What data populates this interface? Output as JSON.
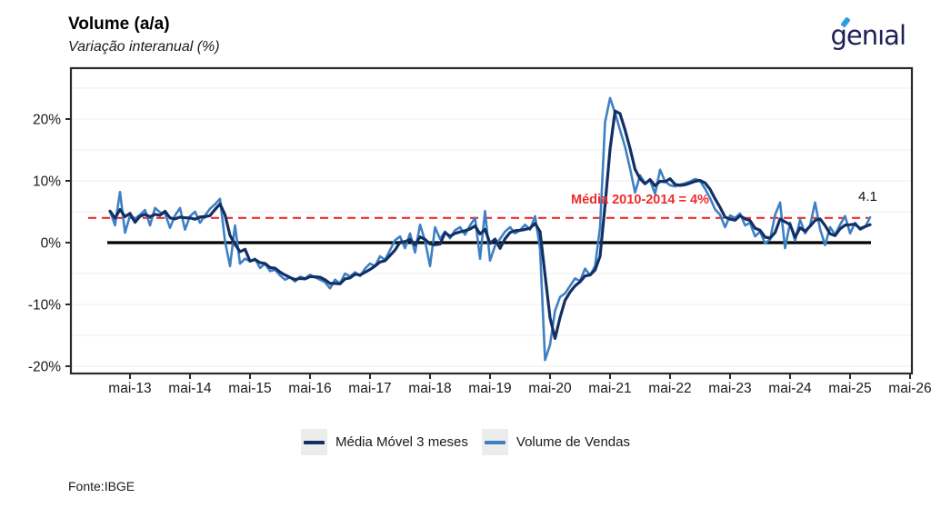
{
  "header": {
    "title": "Volume (a/a)",
    "subtitle": "Variação interanual (%)"
  },
  "logo": {
    "text": "genıal",
    "color": "#1d2157",
    "accent_color": "#2f9ce8"
  },
  "footer": {
    "source": "Fonte:IBGE"
  },
  "legend": [
    {
      "label": "Média Móvel 3 meses",
      "color": "#123064"
    },
    {
      "label": "Volume de Vendas",
      "color": "#3e80c4"
    }
  ],
  "annotations": {
    "mean_line_label": "Média 2010-2014 = 4%",
    "mean_line_color": "#f02b2b",
    "last_value_label": "4.1"
  },
  "chart_data": {
    "type": "line",
    "title": "Volume (a/a)",
    "subtitle": "Variação interanual (%)",
    "xlabel": "",
    "ylabel": "Variação interanual (%)",
    "x_frequency": "monthly",
    "x_start": "jan-2013",
    "x_end": "set-2025",
    "x_tick_labels": [
      "mai-13",
      "mai-14",
      "mai-15",
      "mai-16",
      "mai-17",
      "mai-18",
      "mai-19",
      "mai-20",
      "mai-21",
      "mai-22",
      "mai-23",
      "mai-24",
      "mai-25",
      "mai-26"
    ],
    "y_ticks": [
      20,
      10,
      0,
      -10,
      -20
    ],
    "y_tick_labels": [
      "20%",
      "10%",
      "0%",
      "-10%",
      "-20%"
    ],
    "ylim": [
      -22.5,
      28
    ],
    "gridline_values": [
      25,
      20,
      15,
      10,
      5,
      -5,
      -10,
      -15,
      -20
    ],
    "grid": "horizontal-light",
    "grid_color": "#ededed",
    "axis_color": "#2b2b2b",
    "zero_line_color": "#000000",
    "legend_position": "bottom",
    "reference_lines": [
      {
        "label": "Média 2010-2014 = 4%",
        "value": 4,
        "color": "#f02b2b",
        "style": "dashed"
      },
      {
        "label": "zero",
        "value": 0,
        "color": "#000000",
        "style": "solid"
      }
    ],
    "series": [
      {
        "name": "Volume de Vendas",
        "color": "#3e80c4",
        "values": [
          5.1,
          2.8,
          8.2,
          1.6,
          4.4,
          3.9,
          4.5,
          5.3,
          2.8,
          5.6,
          4.9,
          4.7,
          2.4,
          4.4,
          5.6,
          2.1,
          4.3,
          5.0,
          3.2,
          4.4,
          5.5,
          6.2,
          7.1,
          0.2,
          -3.8,
          2.8,
          -3.4,
          -2.6,
          -3.0,
          -2.6,
          -4.1,
          -3.4,
          -4.6,
          -4.4,
          -5.3,
          -6.0,
          -5.6,
          -6.3,
          -5.5,
          -5.8,
          -5.2,
          -5.6,
          -6.0,
          -6.4,
          -7.4,
          -6.0,
          -6.6,
          -5.0,
          -5.5,
          -4.8,
          -5.4,
          -4.2,
          -3.4,
          -3.8,
          -2.2,
          -2.8,
          -1.2,
          0.4,
          1.0,
          -0.9,
          1.5,
          -1.6,
          2.9,
          0.3,
          -3.8,
          2.5,
          0.6,
          1.8,
          0.7,
          2.0,
          2.5,
          1.3,
          2.8,
          4.0,
          -2.6,
          5.1,
          -2.9,
          -0.5,
          0.6,
          1.8,
          2.5,
          1.5,
          2.0,
          2.9,
          2.1,
          4.3,
          -1.0,
          -19.0,
          -16.5,
          -11.0,
          -8.8,
          -8.2,
          -7.0,
          -5.8,
          -6.2,
          -4.2,
          -5.3,
          -3.8,
          2.5,
          19.5,
          23.4,
          21.0,
          18.2,
          15.5,
          12.0,
          8.1,
          10.9,
          9.6,
          10.1,
          7.9,
          11.8,
          9.9,
          9.3,
          9.1,
          9.4,
          9.6,
          9.9,
          10.3,
          10.0,
          8.7,
          7.2,
          5.4,
          4.5,
          2.5,
          4.4,
          4.0,
          4.7,
          2.8,
          3.2,
          1.0,
          1.8,
          -0.1,
          0.5,
          4.5,
          6.5,
          -0.9,
          3.2,
          0.3,
          3.7,
          1.5,
          2.8,
          6.5,
          2.2,
          -0.4,
          2.5,
          1.3,
          2.9,
          4.3,
          1.5,
          3.2,
          2.1,
          2.5,
          4.1
        ]
      },
      {
        "name": "Média Móvel 3 meses",
        "color": "#123064",
        "derived": "rolling_mean_3_months_of_Volume_de_Vendas"
      }
    ],
    "last_value": 4.1
  }
}
